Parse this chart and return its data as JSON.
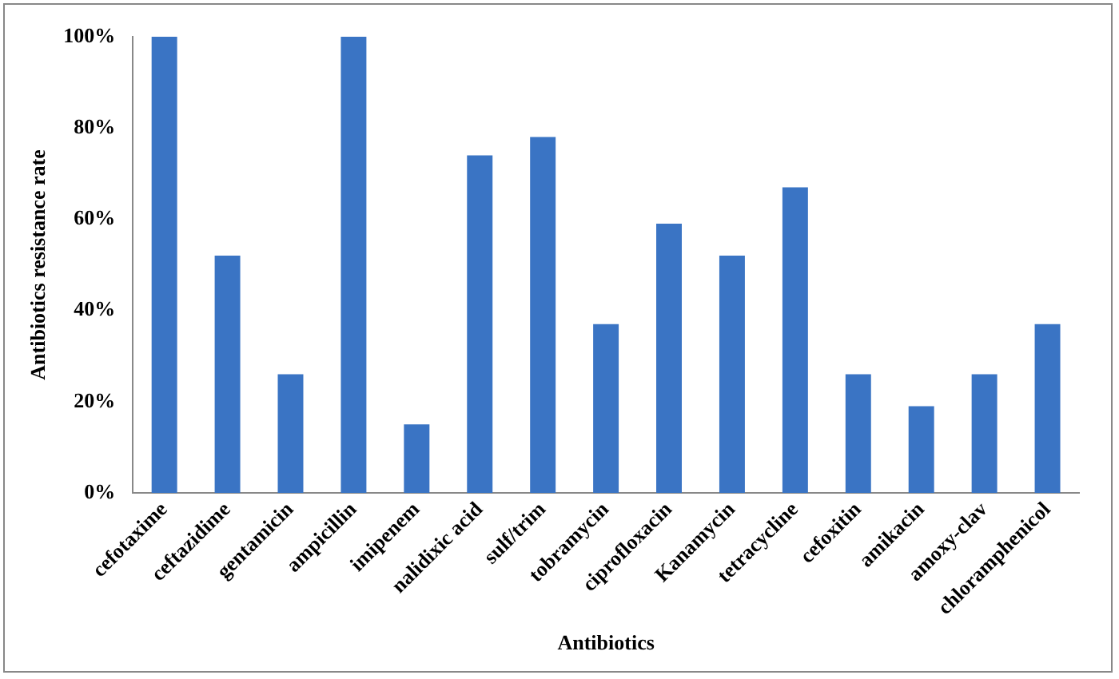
{
  "chart_data": {
    "type": "bar",
    "xlabel": "Antibiotics",
    "ylabel": "Antibiotics resistance rate",
    "categories": [
      "cefotaxime",
      "ceftazidime",
      "gentamicin",
      "ampicillin",
      "imipenem",
      "nalidixic acid",
      "sulf/trim",
      "tobramycin",
      "ciprofloxacin",
      "Kanamycin",
      "tetracycline",
      "cefoxitin",
      "amikacin",
      "amoxy-clav",
      "chloramphenicol"
    ],
    "values": [
      100,
      52,
      26,
      100,
      15,
      74,
      78,
      37,
      59,
      52,
      67,
      26,
      19,
      26,
      37
    ],
    "color": "#3a74c4",
    "ylim": [
      0,
      100
    ],
    "yticks": [
      {
        "value": 0,
        "label": "0%"
      },
      {
        "value": 20,
        "label": "20%"
      },
      {
        "value": 40,
        "label": "40%"
      },
      {
        "value": 60,
        "label": "60%"
      },
      {
        "value": 80,
        "label": "80%"
      },
      {
        "value": 100,
        "label": "100%"
      }
    ],
    "grid": false,
    "legend": false
  }
}
